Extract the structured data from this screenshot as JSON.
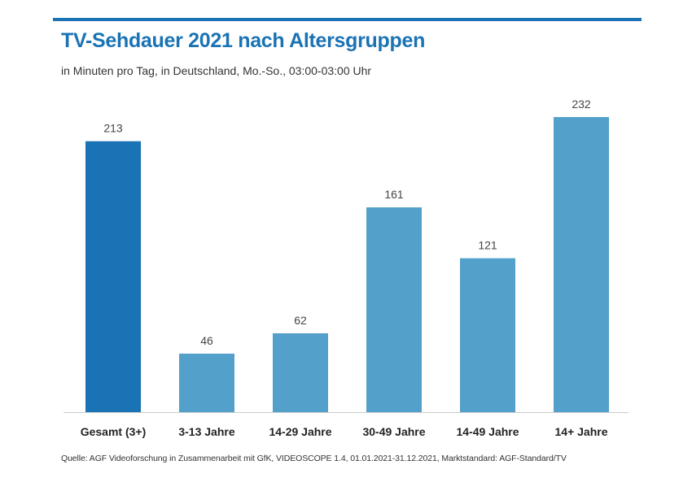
{
  "colors": {
    "accent": "#1a73b4",
    "bar_highlight": "#1a73b4",
    "bar_default": "#53a0cb",
    "title": "#1a73b4",
    "baseline": "#cccccc"
  },
  "header": {
    "title": "TV-Sehdauer 2021 nach Altersgruppen",
    "subtitle": "in Minuten pro Tag, in Deutschland, Mo.-So., 03:00-03:00 Uhr"
  },
  "footer": {
    "source": "Quelle: AGF Videoforschung in Zusammenarbeit mit GfK, VIDEOSCOPE 1.4, 01.01.2021-31.12.2021, Marktstandard: AGF-Standard/TV"
  },
  "chart_data": {
    "type": "bar",
    "title": "TV-Sehdauer 2021 nach Altersgruppen",
    "subtitle": "in Minuten pro Tag, in Deutschland, Mo.-So., 03:00-03:00 Uhr",
    "xlabel": "",
    "ylabel": "",
    "categories": [
      "Gesamt (3+)",
      "3-13 Jahre",
      "14-29 Jahre",
      "30-49 Jahre",
      "14-49 Jahre",
      "14+ Jahre"
    ],
    "values": [
      213,
      46,
      62,
      161,
      121,
      232
    ],
    "data_labels": [
      "213",
      "46",
      "62",
      "161",
      "121",
      "232"
    ],
    "highlight_index": 0,
    "ylim": [
      0,
      232
    ],
    "grid": false,
    "legend": "none"
  }
}
